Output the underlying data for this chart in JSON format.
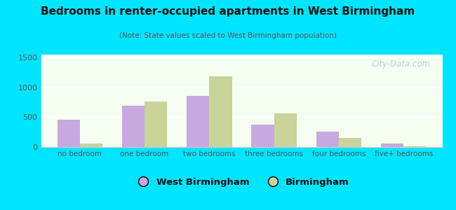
{
  "title": "Bedrooms in renter-occupied apartments in West Birmingham",
  "subtitle": "(Note: State values scaled to West Birmingham population)",
  "categories": [
    "no bedroom",
    "one bedroom",
    "two bedrooms",
    "three bedrooms",
    "four bedrooms",
    "five+ bedrooms"
  ],
  "west_birmingham": [
    460,
    695,
    860,
    380,
    255,
    60
  ],
  "birmingham": [
    55,
    760,
    1185,
    565,
    155,
    10
  ],
  "bar_color_wb": "#c9a8e0",
  "bar_color_b": "#c8d49a",
  "background_outer": "#00e5ff",
  "background_inner": "#f5fdf0",
  "ylim": [
    0,
    1550
  ],
  "yticks": [
    0,
    500,
    1000,
    1500
  ],
  "legend_label_wb": "West Birmingham",
  "legend_label_b": "Birmingham",
  "watermark": "City-Data.com"
}
